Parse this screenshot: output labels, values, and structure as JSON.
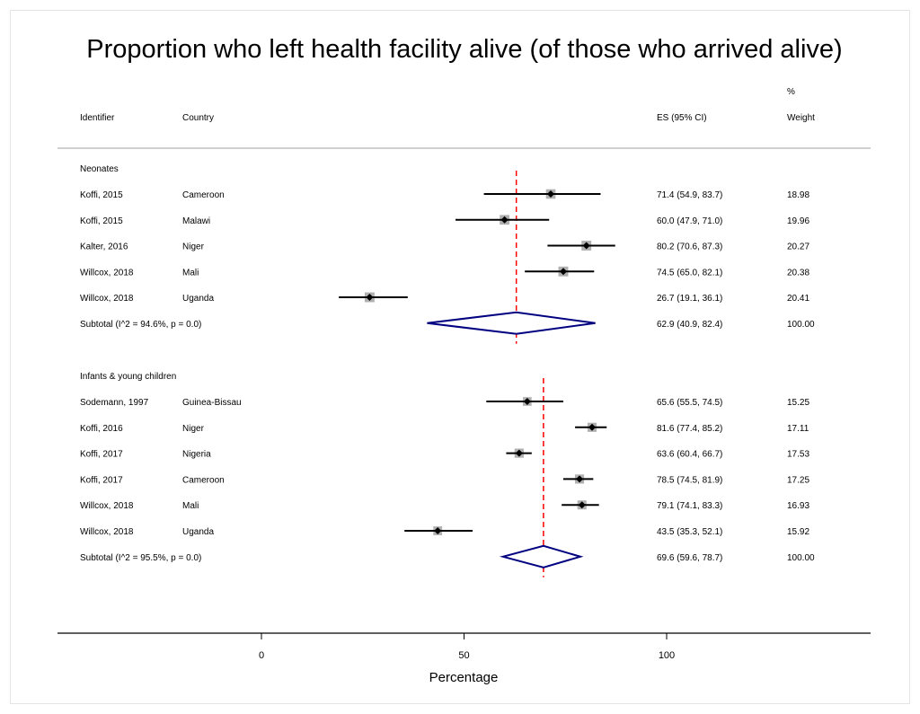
{
  "chart_data": {
    "type": "forest",
    "title": "Proportion who left health facility alive (of those who arrived alive)",
    "xlabel": "Percentage",
    "xticks": [
      0,
      50,
      100
    ],
    "xlim": [
      -50,
      150
    ],
    "headers": {
      "identifier": "Identifier",
      "country": "Country",
      "es": "ES (95% CI)",
      "weight_top": "%",
      "weight": "Weight"
    },
    "groups": [
      {
        "label": "Neonates",
        "studies": [
          {
            "identifier": "Koffi, 2015",
            "country": "Cameroon",
            "es": 71.4,
            "lo": 54.9,
            "hi": 83.7,
            "es_text": "71.4 (54.9, 83.7)",
            "weight": "18.98"
          },
          {
            "identifier": "Koffi, 2015",
            "country": "Malawi",
            "es": 60.0,
            "lo": 47.9,
            "hi": 71.0,
            "es_text": "60.0 (47.9, 71.0)",
            "weight": "19.96"
          },
          {
            "identifier": "Kalter, 2016",
            "country": "Niger",
            "es": 80.2,
            "lo": 70.6,
            "hi": 87.3,
            "es_text": "80.2 (70.6, 87.3)",
            "weight": "20.27"
          },
          {
            "identifier": "Willcox, 2018",
            "country": "Mali",
            "es": 74.5,
            "lo": 65.0,
            "hi": 82.1,
            "es_text": "74.5 (65.0, 82.1)",
            "weight": "20.38"
          },
          {
            "identifier": "Willcox, 2018",
            "country": "Uganda",
            "es": 26.7,
            "lo": 19.1,
            "hi": 36.1,
            "es_text": "26.7 (19.1, 36.1)",
            "weight": "20.41"
          }
        ],
        "subtotal": {
          "label": "Subtotal  (I^2 = 94.6%, p = 0.0)",
          "es": 62.9,
          "lo": 40.9,
          "hi": 82.4,
          "es_text": "62.9 (40.9, 82.4)",
          "weight": "100.00"
        }
      },
      {
        "label": "Infants & young children",
        "studies": [
          {
            "identifier": "Sodemann, 1997",
            "country": "Guinea-Bissau",
            "es": 65.6,
            "lo": 55.5,
            "hi": 74.5,
            "es_text": "65.6 (55.5, 74.5)",
            "weight": "15.25"
          },
          {
            "identifier": "Koffi, 2016",
            "country": "Niger",
            "es": 81.6,
            "lo": 77.4,
            "hi": 85.2,
            "es_text": "81.6 (77.4, 85.2)",
            "weight": "17.11"
          },
          {
            "identifier": "Koffi, 2017",
            "country": "Nigeria",
            "es": 63.6,
            "lo": 60.4,
            "hi": 66.7,
            "es_text": "63.6 (60.4, 66.7)",
            "weight": "17.53"
          },
          {
            "identifier": "Koffi, 2017",
            "country": "Cameroon",
            "es": 78.5,
            "lo": 74.5,
            "hi": 81.9,
            "es_text": "78.5 (74.5, 81.9)",
            "weight": "17.25"
          },
          {
            "identifier": "Willcox, 2018",
            "country": "Mali",
            "es": 79.1,
            "lo": 74.1,
            "hi": 83.3,
            "es_text": "79.1 (74.1, 83.3)",
            "weight": "16.93"
          },
          {
            "identifier": "Willcox, 2018",
            "country": "Uganda",
            "es": 43.5,
            "lo": 35.3,
            "hi": 52.1,
            "es_text": "43.5 (35.3, 52.1)",
            "weight": "15.92"
          }
        ],
        "subtotal": {
          "label": "Subtotal  (I^2 = 95.5%, p = 0.0)",
          "es": 69.6,
          "lo": 59.6,
          "hi": 78.7,
          "es_text": "69.6 (59.6, 78.7)",
          "weight": "100.00"
        }
      }
    ],
    "colors": {
      "ci_line": "#000000",
      "marker_box": "#b0b0b0",
      "point": "#000000",
      "diamond": "#000080",
      "pooled_line": "#ff0000",
      "separator": "#a0a0a0"
    }
  }
}
